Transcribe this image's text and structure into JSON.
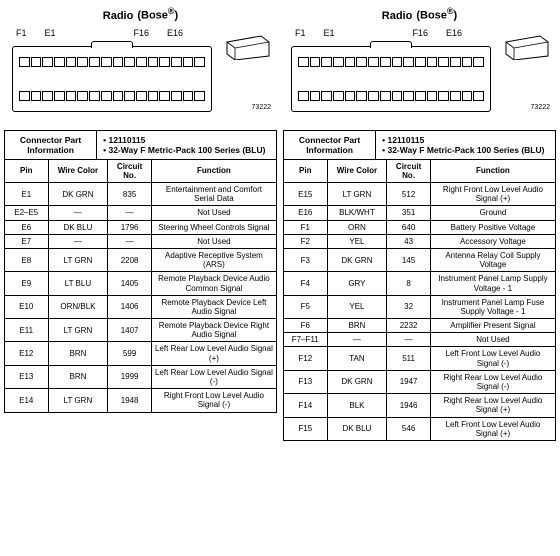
{
  "title_main": "Radio",
  "title_sub": "(Bose",
  "title_reg": "®",
  "title_close": ")",
  "pin_f1": "F1",
  "pin_e1": "E1",
  "pin_f16": "F16",
  "pin_e16": "E16",
  "part_ref": "73222",
  "info_label": "Connector Part Information",
  "info_v1": "12110115",
  "info_v2": "32-Way F Metric-Pack 100 Series (BLU)",
  "col_pin": "Pin",
  "col_wire": "Wire Color",
  "col_ckt": "Circuit No.",
  "col_fn": "Function",
  "left": {
    "rows": [
      {
        "pin": "E1",
        "wire": "DK GRN",
        "ckt": "835",
        "fn": "Entertainment and Comfort Serial Data"
      },
      {
        "pin": "E2–E5",
        "wire": "—",
        "ckt": "—",
        "fn": "Not Used"
      },
      {
        "pin": "E6",
        "wire": "DK BLU",
        "ckt": "1796",
        "fn": "Steering Wheel Controls Signal"
      },
      {
        "pin": "E7",
        "wire": "—",
        "ckt": "—",
        "fn": "Not Used"
      },
      {
        "pin": "E8",
        "wire": "LT GRN",
        "ckt": "2208",
        "fn": "Adaptive Receptive System (ARS)"
      },
      {
        "pin": "E9",
        "wire": "LT BLU",
        "ckt": "1405",
        "fn": "Remote Playback Device Audio Common Signal"
      },
      {
        "pin": "E10",
        "wire": "ORN/BLK",
        "ckt": "1406",
        "fn": "Remote Playback Device Left Audio Signal"
      },
      {
        "pin": "E11",
        "wire": "LT GRN",
        "ckt": "1407",
        "fn": "Remote Playback Device Right Audio Signal"
      },
      {
        "pin": "E12",
        "wire": "BRN",
        "ckt": "599",
        "fn": "Left Rear Low Level Audio Signal (+)"
      },
      {
        "pin": "E13",
        "wire": "BRN",
        "ckt": "1999",
        "fn": "Left Rear Low Level Audio Signal (-)"
      },
      {
        "pin": "E14",
        "wire": "LT GRN",
        "ckt": "1948",
        "fn": "Right Front Low Level Audio Signal (-)"
      }
    ]
  },
  "right": {
    "rows": [
      {
        "pin": "E15",
        "wire": "LT GRN",
        "ckt": "512",
        "fn": "Right Front Low Level Audio Signal (+)"
      },
      {
        "pin": "E16",
        "wire": "BLK/WHT",
        "ckt": "351",
        "fn": "Ground"
      },
      {
        "pin": "F1",
        "wire": "ORN",
        "ckt": "640",
        "fn": "Battery Positive Voltage"
      },
      {
        "pin": "F2",
        "wire": "YEL",
        "ckt": "43",
        "fn": "Accessory Voltage"
      },
      {
        "pin": "F3",
        "wire": "DK GRN",
        "ckt": "145",
        "fn": "Antenna Relay Coil Supply Voltage"
      },
      {
        "pin": "F4",
        "wire": "GRY",
        "ckt": "8",
        "fn": "Instrument Panel Lamp Supply Voltage - 1"
      },
      {
        "pin": "F5",
        "wire": "YEL",
        "ckt": "32",
        "fn": "Instrument Panel Lamp Fuse Supply Voltage - 1"
      },
      {
        "pin": "F6",
        "wire": "BRN",
        "ckt": "2232",
        "fn": "Amplifier Present Signal"
      },
      {
        "pin": "F7–F11",
        "wire": "—",
        "ckt": "—",
        "fn": "Not Used"
      },
      {
        "pin": "F12",
        "wire": "TAN",
        "ckt": "511",
        "fn": "Left Front Low Level Audio Signal (-)"
      },
      {
        "pin": "F13",
        "wire": "DK GRN",
        "ckt": "1947",
        "fn": "Right Rear Low Level Audio Signal (-)"
      },
      {
        "pin": "F14",
        "wire": "BLK",
        "ckt": "1946",
        "fn": "Right Rear Low Level Audio Signal (+)"
      },
      {
        "pin": "F15",
        "wire": "DK BLU",
        "ckt": "546",
        "fn": "Left Front Low Level Audio Signal (+)"
      }
    ]
  }
}
